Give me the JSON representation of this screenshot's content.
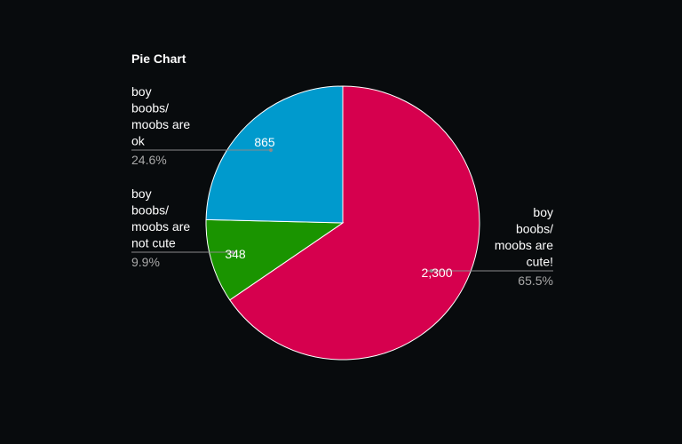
{
  "chart_data": {
    "type": "pie",
    "title": "Pie Chart",
    "slices": [
      {
        "label": "boy boobs/ moobs are cute!",
        "label_lines": [
          "boy",
          "boobs/",
          "moobs are",
          "cute!"
        ],
        "value": 2300,
        "value_label": "2,300",
        "percent_label": "65.5%",
        "color": "#d6004e"
      },
      {
        "label": "boy boobs/ moobs are not cute",
        "label_lines": [
          "boy",
          "boobs/",
          "moobs are",
          "not cute"
        ],
        "value": 348,
        "value_label": "348",
        "percent_label": "9.9%",
        "color": "#1a9400"
      },
      {
        "label": "boy boobs/ moobs are ok",
        "label_lines": [
          "boy",
          "boobs/",
          "moobs are",
          "ok"
        ],
        "value": 865,
        "value_label": "865",
        "percent_label": "24.6%",
        "color": "#009acd"
      }
    ]
  }
}
